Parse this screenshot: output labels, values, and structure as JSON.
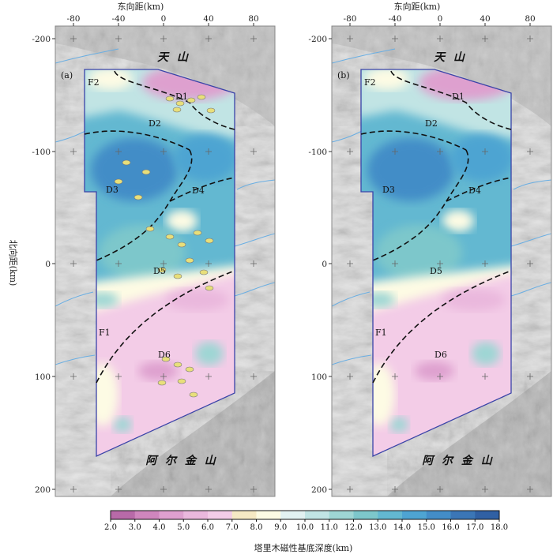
{
  "x_axis_title": "东向距(km)",
  "y_axis_title": "北向距(km)",
  "x_ticks": [
    "-80",
    "-40",
    "0",
    "40",
    "80"
  ],
  "y_ticks": [
    "-200",
    "-100",
    "0",
    "100",
    "200"
  ],
  "panels": [
    {
      "id": "a",
      "label": "(a)",
      "show_intrusions": true
    },
    {
      "id": "b",
      "label": "(b)",
      "show_intrusions": false
    }
  ],
  "regions": [
    "F2",
    "D1",
    "D2",
    "D3",
    "D4",
    "D5",
    "F1",
    "D6"
  ],
  "mountains": {
    "north": "天 山",
    "south": "阿 尔 金 山"
  },
  "colorbar": {
    "title": "塔里木磁性基底深度(km)",
    "ticks": [
      "2.0",
      "3.0",
      "4.0",
      "5.0",
      "6.0",
      "7.0",
      "8.0",
      "9.0",
      "10.0",
      "11.0",
      "12.0",
      "13.0",
      "14.0",
      "15.0",
      "16.0",
      "17.0",
      "18.0"
    ],
    "colors": [
      "#b86aa8",
      "#cf86bd",
      "#dea0cf",
      "#eab8dd",
      "#f3cce7",
      "#f6e9c4",
      "#fdfbe4",
      "#e2f1f1",
      "#c1e4e4",
      "#9ed6d4",
      "#7dc7cb",
      "#63b8d1",
      "#4ea4d2",
      "#438dc7",
      "#3b76b6",
      "#3060a3"
    ]
  },
  "colors": {
    "frame_border": "#888888",
    "study_outline": "#3a43a8",
    "rivers": "#6aaee2",
    "intrusions": "#e8df7a"
  }
}
